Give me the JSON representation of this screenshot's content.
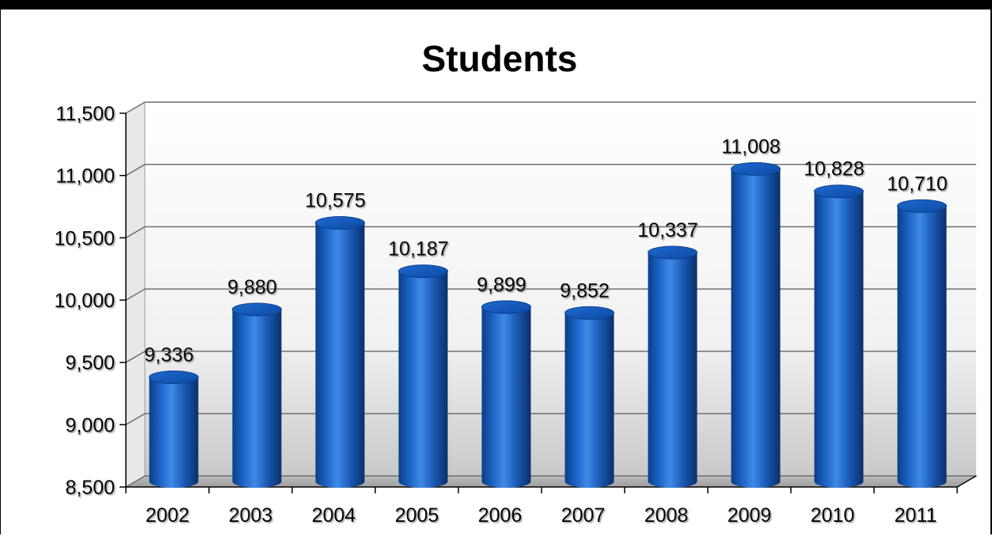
{
  "chart_data": {
    "type": "bar",
    "title": "Students",
    "xlabel": "",
    "ylabel": "",
    "categories": [
      "2002",
      "2003",
      "2004",
      "2005",
      "2006",
      "2007",
      "2008",
      "2009",
      "2010",
      "2011"
    ],
    "values": [
      9336,
      9880,
      10575,
      10187,
      9899,
      9852,
      10337,
      11008,
      10828,
      10710
    ],
    "value_labels": [
      "9,336",
      "9,880",
      "10,575",
      "10,187",
      "9,899",
      "9,852",
      "10,337",
      "11,008",
      "10,828",
      "10,710"
    ],
    "ylim": [
      8500,
      11500
    ],
    "y_ticks": [
      8500,
      9000,
      9500,
      10000,
      10500,
      11000,
      11500
    ],
    "y_tick_labels": [
      "8,500",
      "9,000",
      "9,500",
      "10,000",
      "10,500",
      "11,000",
      "11,500"
    ],
    "grid": true,
    "style": "3d-cylinder",
    "bar_color": "#1565c0"
  }
}
